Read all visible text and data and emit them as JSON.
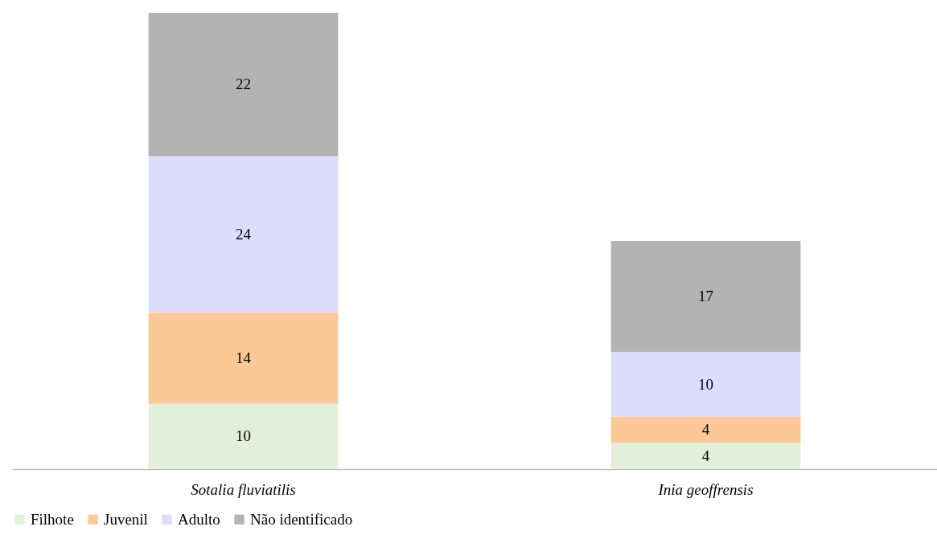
{
  "chart_data": {
    "type": "bar",
    "stacked": true,
    "data_labels": true,
    "legend": "bottom",
    "grid": false,
    "categories": [
      "Sotalia fluviatilis",
      "Inia geoffrensis"
    ],
    "series": [
      {
        "name": "Filhote",
        "color": "#e2efda",
        "values": [
          10,
          4
        ]
      },
      {
        "name": "Juvenil",
        "color": "#fdc897",
        "values": [
          14,
          4
        ]
      },
      {
        "name": "Adulto",
        "color": "#dfdcfb",
        "values": [
          24,
          10
        ]
      },
      {
        "name": "Não identificado",
        "color": "#b3b3b3",
        "values": [
          22,
          17
        ]
      }
    ]
  }
}
